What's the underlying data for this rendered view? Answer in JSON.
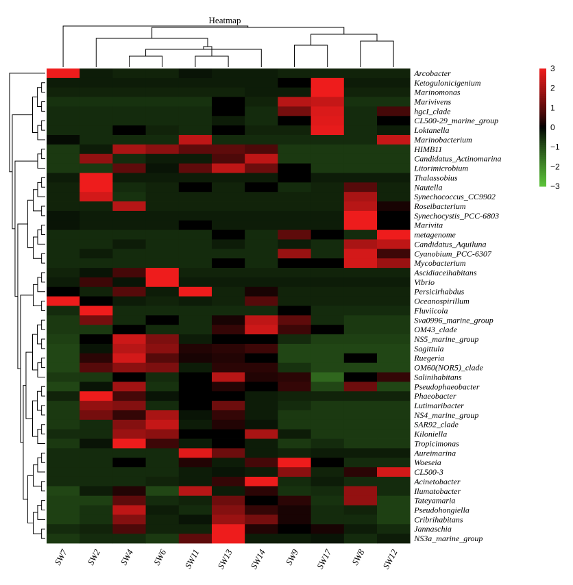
{
  "chart_data": {
    "type": "heatmap",
    "title": "Heatmap",
    "columns": [
      "SW7",
      "SW2",
      "SW4",
      "SW6",
      "SW11",
      "SW13",
      "SW14",
      "SW9",
      "SW17",
      "SW8",
      "SW12"
    ],
    "rows": [
      "Arcobacter",
      "Ketogulonicigenium",
      "Marinomonas",
      "Marivivens",
      "hgcI_clade",
      "CL500-29_marine_group",
      "Loktanella",
      "Marinobacterium",
      "HIMB11",
      "Candidatus_Actinomarina",
      "Litorimicrobium",
      "Thalassobius",
      "Nautella",
      "Synechococcus_CC9902",
      "Roseibacterium",
      "Synechocystis_PCC-6803",
      "Marivita",
      "metagenome",
      "Candidatus_Aquiluna",
      "Cyanobium_PCC-6307",
      "Mycobacterium",
      "Ascidiaceihabitans",
      "Vibrio",
      "Persicirhabdus",
      "Oceanospirillum",
      "Fluviicola",
      "Sva0996_marine_group",
      "OM43_clade",
      "NS5_marine_group",
      "Sagittula",
      "Ruegeria",
      "OM60(NOR5)_clade",
      "Salinihabitans",
      "Pseudophaeobacter",
      "Phaeobacter",
      "Lutimaribacter",
      "NS4_marine_group",
      "SAR92_clade",
      "Kiloniella",
      "Tropicimonas",
      "Aureimarina",
      "Woeseia",
      "CL500-3",
      "Acinetobacter",
      "Ilumatobacter",
      "Tateyamaria",
      "Pseudohongiella",
      "Cribrihabitans",
      "Jannaschia",
      "NS3a_marine_group"
    ],
    "values": [
      [
        3.0,
        -0.3,
        -0.4,
        -0.4,
        -0.2,
        -0.3,
        -0.3,
        -0.4,
        -0.4,
        -0.4,
        -0.4
      ],
      [
        -0.3,
        -0.3,
        -0.3,
        -0.3,
        -0.3,
        -0.3,
        -0.3,
        0.0,
        3.0,
        -0.3,
        -0.3
      ],
      [
        -0.4,
        -0.4,
        -0.4,
        -0.4,
        -0.4,
        -0.4,
        -0.3,
        -0.3,
        3.0,
        -0.4,
        -0.4
      ],
      [
        -0.6,
        -0.6,
        -0.6,
        -0.6,
        -0.6,
        0.0,
        -0.4,
        2.2,
        2.4,
        -0.6,
        -0.6
      ],
      [
        -0.5,
        -0.5,
        -0.5,
        -0.5,
        -0.5,
        0.0,
        -0.5,
        1.3,
        2.7,
        -0.5,
        0.7
      ],
      [
        -0.5,
        -0.5,
        -0.5,
        -0.5,
        -0.5,
        -0.3,
        -0.5,
        0.0,
        2.8,
        -0.5,
        0.0
      ],
      [
        -0.5,
        -0.5,
        0.0,
        -0.4,
        -0.5,
        0.0,
        -0.4,
        -0.4,
        2.9,
        -0.5,
        -0.3
      ],
      [
        -0.1,
        -0.5,
        -0.5,
        -0.5,
        2.3,
        -0.5,
        -0.5,
        -0.5,
        -0.5,
        -0.5,
        2.4
      ],
      [
        -0.7,
        -0.3,
        2.0,
        1.6,
        1.0,
        1.0,
        0.8,
        -0.7,
        -0.7,
        -0.7,
        -0.7
      ],
      [
        -0.7,
        1.7,
        -0.5,
        -0.3,
        -0.3,
        0.8,
        2.3,
        -0.7,
        -0.7,
        -0.7,
        -0.7
      ],
      [
        -0.7,
        -0.7,
        1.0,
        -0.2,
        1.0,
        2.3,
        1.2,
        0.0,
        -0.7,
        -0.7,
        -0.7
      ],
      [
        -0.3,
        3.0,
        -0.3,
        -0.3,
        -0.3,
        -0.3,
        -0.3,
        0.0,
        -0.3,
        -0.3,
        -0.3
      ],
      [
        -0.4,
        3.0,
        -0.5,
        -0.4,
        0.0,
        -0.4,
        0.0,
        -0.5,
        -0.4,
        0.9,
        -0.4
      ],
      [
        -0.4,
        2.6,
        -0.6,
        -0.4,
        -0.4,
        -0.4,
        -0.4,
        -0.4,
        -0.4,
        2.0,
        -0.4
      ],
      [
        -0.4,
        -0.4,
        2.2,
        -0.4,
        -0.4,
        -0.4,
        -0.4,
        -0.4,
        -0.4,
        2.2,
        0.2
      ],
      [
        -0.2,
        -0.3,
        -0.3,
        -0.3,
        -0.3,
        -0.3,
        -0.3,
        -0.3,
        -0.3,
        3.0,
        0.0
      ],
      [
        -0.2,
        -0.3,
        -0.3,
        -0.3,
        0.0,
        -0.3,
        -0.3,
        -0.3,
        -0.3,
        3.0,
        0.0
      ],
      [
        -0.5,
        -0.5,
        -0.5,
        -0.5,
        -0.5,
        0.0,
        -0.5,
        1.0,
        0.0,
        -0.5,
        3.0
      ],
      [
        -0.5,
        -0.5,
        -0.3,
        -0.5,
        -0.5,
        -0.3,
        -0.5,
        -0.3,
        -0.5,
        2.0,
        2.3
      ],
      [
        -0.5,
        -0.3,
        -0.5,
        -0.5,
        -0.5,
        -0.5,
        -0.5,
        1.8,
        -0.5,
        2.6,
        0.6
      ],
      [
        -0.5,
        -0.5,
        -0.5,
        -0.5,
        -0.5,
        0.0,
        -0.5,
        0.0,
        0.0,
        2.6,
        1.8
      ],
      [
        -0.4,
        -0.2,
        0.7,
        3.0,
        -0.4,
        -0.4,
        -0.4,
        -0.4,
        -0.4,
        -0.4,
        -0.4
      ],
      [
        -0.3,
        0.6,
        -0.2,
        3.0,
        -0.3,
        -0.3,
        -0.3,
        -0.3,
        -0.3,
        -0.3,
        -0.3
      ],
      [
        0.0,
        -0.4,
        0.9,
        -0.3,
        3.0,
        -0.4,
        0.2,
        -0.4,
        -0.4,
        -0.4,
        -0.4
      ],
      [
        3.0,
        0.0,
        -0.3,
        -0.4,
        -0.3,
        -0.4,
        0.9,
        -0.4,
        -0.4,
        -0.4,
        -0.4
      ],
      [
        -0.5,
        3.0,
        -0.5,
        -0.5,
        -0.5,
        -0.5,
        -0.5,
        0.0,
        -0.5,
        -0.5,
        -0.5
      ],
      [
        -0.7,
        1.3,
        -0.5,
        0.0,
        -0.5,
        0.2,
        2.3,
        1.0,
        -0.5,
        -0.7,
        -0.7
      ],
      [
        -0.7,
        -0.7,
        0.0,
        -0.5,
        -0.5,
        0.5,
        2.5,
        0.6,
        0.0,
        -0.7,
        -0.7
      ],
      [
        -0.8,
        0.0,
        2.5,
        1.4,
        -0.3,
        0.0,
        0.0,
        -0.5,
        -0.8,
        -0.8,
        -0.8
      ],
      [
        -0.9,
        -0.2,
        2.2,
        1.6,
        0.3,
        0.4,
        0.6,
        -0.9,
        -0.9,
        -0.9,
        -0.9
      ],
      [
        -0.9,
        0.4,
        2.6,
        0.9,
        0.2,
        0.3,
        0.0,
        -0.9,
        -0.9,
        0.0,
        -0.9
      ],
      [
        -0.9,
        0.9,
        1.6,
        1.4,
        -0.3,
        0.4,
        0.4,
        -0.6,
        -0.9,
        -0.9,
        -0.9
      ],
      [
        -0.7,
        -0.7,
        0.0,
        -0.5,
        0.0,
        2.2,
        0.3,
        0.4,
        -1.4,
        0.0,
        0.5
      ],
      [
        -0.9,
        -0.2,
        1.9,
        -0.6,
        0.0,
        0.3,
        0.0,
        0.5,
        -0.9,
        1.2,
        -0.9
      ],
      [
        -0.4,
        3.0,
        0.7,
        -0.2,
        0.0,
        0.0,
        -0.3,
        -0.4,
        -0.4,
        -0.4,
        -0.4
      ],
      [
        -0.7,
        1.7,
        1.5,
        -0.5,
        0.0,
        1.2,
        -0.3,
        -0.5,
        -0.7,
        -0.7,
        -0.7
      ],
      [
        -0.7,
        1.3,
        0.5,
        2.0,
        -0.2,
        0.5,
        -0.3,
        -0.7,
        -0.7,
        -0.7,
        -0.7
      ],
      [
        -0.7,
        -0.5,
        1.5,
        2.4,
        -0.3,
        0.3,
        -0.2,
        -0.7,
        -0.7,
        -0.7,
        -0.7
      ],
      [
        -0.5,
        -0.5,
        1.8,
        1.6,
        0.0,
        0.0,
        2.0,
        -0.3,
        -0.7,
        -0.7,
        -0.7
      ],
      [
        -0.7,
        -0.2,
        3.0,
        0.6,
        -0.3,
        0.0,
        -0.3,
        -0.7,
        -0.5,
        -0.7,
        -0.7
      ],
      [
        -0.5,
        -0.5,
        -0.5,
        -0.5,
        2.8,
        1.2,
        -0.3,
        -0.4,
        -0.3,
        -0.3,
        -0.3
      ],
      [
        -0.5,
        -0.5,
        0.0,
        -0.5,
        0.3,
        -0.3,
        0.7,
        3.0,
        0.0,
        -0.5,
        -0.5
      ],
      [
        -0.5,
        -0.5,
        -0.5,
        -0.5,
        -0.3,
        -0.2,
        -0.3,
        1.6,
        -0.4,
        0.4,
        2.6
      ],
      [
        -0.5,
        -0.5,
        -0.5,
        -0.4,
        -0.3,
        0.5,
        3.0,
        -0.5,
        -0.3,
        -0.5,
        -0.5
      ],
      [
        -0.9,
        -0.3,
        0.3,
        -0.9,
        2.2,
        -0.3,
        0.4,
        -0.6,
        -0.5,
        1.7,
        -0.5
      ],
      [
        -0.8,
        -0.8,
        1.0,
        -0.5,
        -0.4,
        1.2,
        0.0,
        0.4,
        -0.6,
        1.7,
        -0.8
      ],
      [
        -0.8,
        -0.6,
        2.3,
        -0.3,
        -0.5,
        1.5,
        0.5,
        0.2,
        -0.5,
        -0.4,
        -0.8
      ],
      [
        -0.8,
        -0.6,
        1.5,
        -0.4,
        -0.2,
        1.8,
        1.3,
        0.2,
        -0.5,
        -0.5,
        -0.8
      ],
      [
        -0.5,
        -0.4,
        0.8,
        -0.4,
        -0.4,
        3.0,
        0.3,
        0.0,
        0.2,
        -0.3,
        -0.5
      ],
      [
        -0.7,
        -0.5,
        -0.5,
        -0.7,
        1.0,
        3.0,
        -0.3,
        -0.3,
        -0.2,
        -0.5,
        -0.3
      ]
    ],
    "colorscale": {
      "min": -3,
      "mid": 0,
      "max": 3,
      "low": "#5cc43a",
      "midcolor": "#000000",
      "high": "#ee1c1c"
    },
    "colorbar_ticks": [
      "3",
      "2",
      "1",
      "0",
      "−1",
      "−2",
      "−3"
    ],
    "row_dendrogram": true,
    "column_dendrogram": true,
    "legend": "right"
  }
}
